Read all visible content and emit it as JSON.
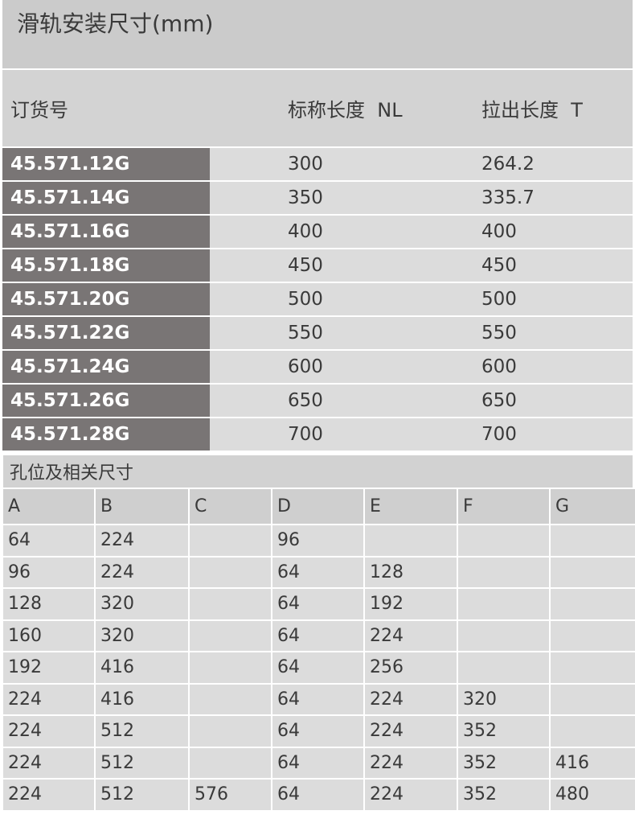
{
  "table1": {
    "title": "滑轨安装尺寸(mm)",
    "headers": [
      "订货号",
      "标称长度  NL",
      "拉出长度  T"
    ],
    "rows": [
      [
        "45.571.12G",
        "300",
        "264.2"
      ],
      [
        "45.571.14G",
        "350",
        "335.7"
      ],
      [
        "45.571.16G",
        "400",
        "400"
      ],
      [
        "45.571.18G",
        "450",
        "450"
      ],
      [
        "45.571.20G",
        "500",
        "500"
      ],
      [
        "45.571.22G",
        "550",
        "550"
      ],
      [
        "45.571.24G",
        "600",
        "600"
      ],
      [
        "45.571.26G",
        "650",
        "650"
      ],
      [
        "45.571.28G",
        "700",
        "700"
      ]
    ]
  },
  "table2": {
    "title": "孔位及相关尺寸",
    "headers": [
      "A",
      "B",
      "C",
      "D",
      "E",
      "F",
      "G"
    ],
    "rows": [
      [
        "64",
        "224",
        "",
        "96",
        "",
        "",
        ""
      ],
      [
        "96",
        "224",
        "",
        "64",
        "128",
        "",
        ""
      ],
      [
        "128",
        "320",
        "",
        "64",
        "192",
        "",
        ""
      ],
      [
        "160",
        "320",
        "",
        "64",
        "224",
        "",
        ""
      ],
      [
        "192",
        "416",
        "",
        "64",
        "256",
        "",
        ""
      ],
      [
        "224",
        "416",
        "",
        "64",
        "224",
        "320",
        ""
      ],
      [
        "224",
        "512",
        "",
        "64",
        "224",
        "352",
        ""
      ],
      [
        "224",
        "512",
        "",
        "64",
        "224",
        "352",
        "416"
      ],
      [
        "224",
        "512",
        "576",
        "64",
        "224",
        "352",
        "480"
      ]
    ]
  }
}
